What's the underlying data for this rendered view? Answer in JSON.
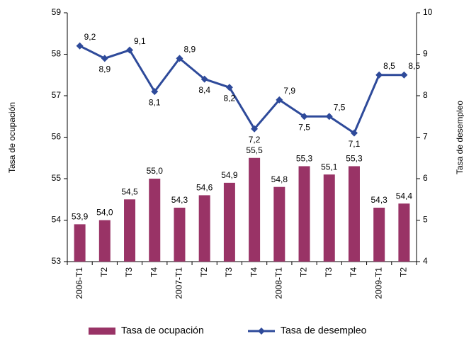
{
  "chart_data": {
    "type": "bar-line",
    "categories": [
      "2006-T1",
      "T2",
      "T3",
      "T4",
      "2007-T1",
      "T2",
      "T3",
      "T4",
      "2008-T1",
      "T2",
      "T3",
      "T4",
      "2009-T1",
      "T2"
    ],
    "series": [
      {
        "name": "Tasa de ocupación",
        "color": "#993366",
        "type": "bar",
        "axis": "y",
        "values": [
          53.9,
          54.0,
          54.5,
          55.0,
          54.3,
          54.6,
          54.9,
          55.5,
          54.8,
          55.3,
          55.1,
          55.3,
          54.3,
          54.4
        ],
        "value_labels": [
          "53,9",
          "54,0",
          "54,5",
          "55,0",
          "54,3",
          "54,6",
          "54,9",
          "55,5",
          "54,8",
          "55,3",
          "55,1",
          "55,3",
          "54,3",
          "54,4"
        ]
      },
      {
        "name": "Tasa de desempleo",
        "color": "#2e4a9a",
        "type": "line",
        "axis": "y2",
        "values": [
          9.2,
          8.9,
          9.1,
          8.1,
          8.9,
          8.4,
          8.2,
          7.2,
          7.9,
          7.5,
          7.5,
          7.1,
          8.5,
          8.5
        ],
        "value_labels": [
          "9,2",
          "8,9",
          "9,1",
          "8,1",
          "8,9",
          "8,4",
          "8,2",
          "7,2",
          "7,9",
          "7,5",
          "7,5",
          "7,1",
          "8,5",
          "8,5"
        ]
      }
    ],
    "y_label": "Tasa de ocupación",
    "y2_label": "Tasa de desempleo",
    "ylim": [
      53,
      59
    ],
    "yticks": [
      53,
      54,
      55,
      56,
      57,
      58,
      59
    ],
    "y2lim": [
      4,
      10
    ],
    "y2ticks": [
      4,
      5,
      6,
      7,
      8,
      9,
      10
    ],
    "legend": "bottom"
  }
}
